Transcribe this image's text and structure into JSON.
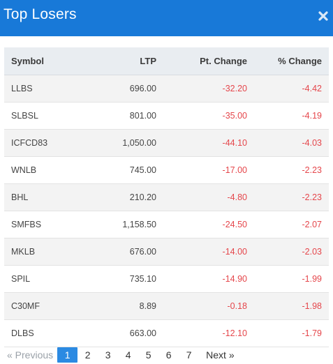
{
  "header": {
    "title": "Top Losers"
  },
  "table": {
    "columns": [
      "Symbol",
      "LTP",
      "Pt. Change",
      "% Change"
    ],
    "rows": [
      {
        "symbol": "LLBS",
        "ltp": "696.00",
        "pt_change": "-32.20",
        "pct_change": "-4.42"
      },
      {
        "symbol": "SLBSL",
        "ltp": "801.00",
        "pt_change": "-35.00",
        "pct_change": "-4.19"
      },
      {
        "symbol": "ICFCD83",
        "ltp": "1,050.00",
        "pt_change": "-44.10",
        "pct_change": "-4.03"
      },
      {
        "symbol": "WNLB",
        "ltp": "745.00",
        "pt_change": "-17.00",
        "pct_change": "-2.23"
      },
      {
        "symbol": "BHL",
        "ltp": "210.20",
        "pt_change": "-4.80",
        "pct_change": "-2.23"
      },
      {
        "symbol": "SMFBS",
        "ltp": "1,158.50",
        "pt_change": "-24.50",
        "pct_change": "-2.07"
      },
      {
        "symbol": "MKLB",
        "ltp": "676.00",
        "pt_change": "-14.00",
        "pct_change": "-2.03"
      },
      {
        "symbol": "SPIL",
        "ltp": "735.10",
        "pt_change": "-14.90",
        "pct_change": "-1.99"
      },
      {
        "symbol": "C30MF",
        "ltp": "8.89",
        "pt_change": "-0.18",
        "pct_change": "-1.98"
      },
      {
        "symbol": "DLBS",
        "ltp": "663.00",
        "pt_change": "-12.10",
        "pct_change": "-1.79"
      }
    ]
  },
  "pagination": {
    "prev_label": "« Previous",
    "next_label": "Next »",
    "pages": [
      "1",
      "2",
      "3",
      "4",
      "5",
      "6",
      "7"
    ],
    "current": "1"
  },
  "colors": {
    "header_bg": "#1879d8",
    "negative": "#e5464b",
    "active_page": "#2b8ae2"
  },
  "icons": {
    "close": "close-icon"
  }
}
